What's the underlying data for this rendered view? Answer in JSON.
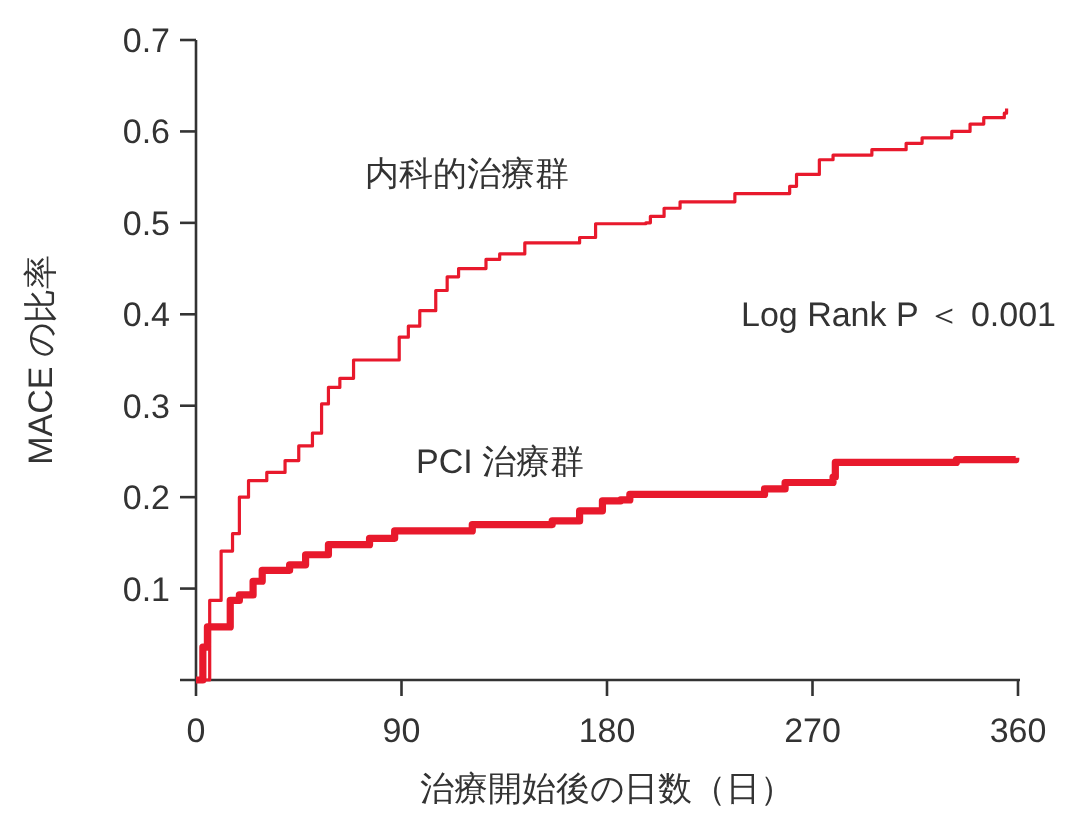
{
  "chart_data": {
    "type": "step",
    "xlabel": "治療開始後の日数（日）",
    "ylabel": "MACE の比率",
    "xlim": [
      0,
      360
    ],
    "ylim": [
      0,
      0.7
    ],
    "xticks": [
      0,
      90,
      180,
      270,
      360
    ],
    "yticks": [
      0.1,
      0.2,
      0.3,
      0.4,
      0.5,
      0.6,
      0.7
    ],
    "grid": false,
    "marker": "none",
    "line_style": "solid",
    "annotations": [
      "Log Rank P ＜ 0.001"
    ],
    "series": [
      {
        "name": "内科的治療群",
        "color": "#e8192c",
        "x": [
          0,
          6,
          11,
          16,
          19,
          23,
          31,
          39,
          45,
          51,
          55,
          58,
          63,
          69,
          82,
          89,
          93,
          98,
          105,
          110,
          115,
          127,
          133,
          144,
          168,
          175,
          197,
          199,
          205,
          212,
          236,
          260,
          263,
          273,
          279,
          296,
          311,
          318,
          331,
          339,
          345,
          354,
          355
        ],
        "values": [
          0,
          0.087,
          0.141,
          0.16,
          0.2,
          0.218,
          0.227,
          0.24,
          0.256,
          0.27,
          0.302,
          0.32,
          0.33,
          0.35,
          0.35,
          0.375,
          0.387,
          0.404,
          0.426,
          0.441,
          0.45,
          0.46,
          0.466,
          0.478,
          0.484,
          0.499,
          0.5,
          0.507,
          0.516,
          0.523,
          0.532,
          0.54,
          0.553,
          0.569,
          0.574,
          0.58,
          0.587,
          0.593,
          0.6,
          0.608,
          0.615,
          0.62,
          0.625
        ]
      },
      {
        "name": "PCI 治療群",
        "color": "#e8192c",
        "x": [
          0,
          3,
          5,
          15,
          19,
          25,
          29,
          41,
          48,
          58,
          76,
          87,
          121,
          156,
          168,
          178,
          186,
          190,
          249,
          258,
          279,
          280,
          333,
          359
        ],
        "values": [
          0,
          0.036,
          0.058,
          0.087,
          0.093,
          0.108,
          0.12,
          0.126,
          0.137,
          0.148,
          0.155,
          0.163,
          0.17,
          0.174,
          0.185,
          0.196,
          0.197,
          0.203,
          0.209,
          0.216,
          0.222,
          0.238,
          0.241,
          0.243
        ]
      }
    ]
  }
}
